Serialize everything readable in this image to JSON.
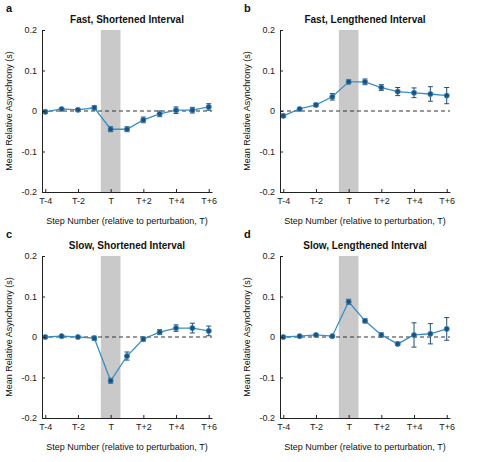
{
  "chart_data": [
    {
      "type": "line",
      "panel_label": "a",
      "title": "Fast, Shortened Interval",
      "xlabel": "Step Number (relative to perturbation, T)",
      "ylabel": "Mean Relative Asynchrony (s)",
      "x": [
        -4,
        -3,
        -2,
        -1,
        0,
        1,
        2,
        3,
        4,
        5,
        6
      ],
      "values": [
        -0.002,
        0.005,
        0.003,
        0.008,
        -0.045,
        -0.045,
        -0.022,
        -0.007,
        0.002,
        0.002,
        0.01
      ],
      "error": [
        0.004,
        0.003,
        0.003,
        0.005,
        0.006,
        0.006,
        0.007,
        0.007,
        0.008,
        0.007,
        0.008
      ],
      "color": "#3a8fc7",
      "marker": "circle",
      "xlim": [
        -4.2,
        6.2
      ],
      "xticks": [
        {
          "value": -4,
          "label": "T-4"
        },
        {
          "value": -2,
          "label": "T-2"
        },
        {
          "value": 0,
          "label": "T"
        },
        {
          "value": 2,
          "label": "T+2"
        },
        {
          "value": 4,
          "label": "T+4"
        },
        {
          "value": 6,
          "label": "T+6"
        }
      ],
      "ylim": [
        -0.2,
        0.2
      ],
      "yticks": [
        -0.2,
        -0.1,
        0,
        0.1,
        0.2
      ]
    },
    {
      "type": "line",
      "panel_label": "b",
      "title": "Fast, Lengthened Interval",
      "xlabel": "Step Number (relative to perturbation, T)",
      "ylabel": "Mean Relative Asynchrony (s)",
      "x": [
        -4,
        -3,
        -2,
        -1,
        0,
        1,
        2,
        3,
        4,
        5,
        6
      ],
      "values": [
        -0.012,
        0.005,
        0.015,
        0.035,
        0.072,
        0.072,
        0.058,
        0.048,
        0.045,
        0.042,
        0.038
      ],
      "error": [
        0.004,
        0.003,
        0.004,
        0.008,
        0.005,
        0.007,
        0.007,
        0.01,
        0.012,
        0.018,
        0.02
      ],
      "color": "#3a8fc7",
      "marker": "circle",
      "xlim": [
        -4.2,
        6.2
      ],
      "xticks": [
        {
          "value": -4,
          "label": "T-4"
        },
        {
          "value": -2,
          "label": "T-2"
        },
        {
          "value": 0,
          "label": "T"
        },
        {
          "value": 2,
          "label": "T+2"
        },
        {
          "value": 4,
          "label": "T+4"
        },
        {
          "value": 6,
          "label": "T+6"
        }
      ],
      "ylim": [
        -0.2,
        0.2
      ],
      "yticks": [
        -0.2,
        -0.1,
        0,
        0.1,
        0.2
      ]
    },
    {
      "type": "line",
      "panel_label": "c",
      "title": "Slow, Shortened Interval",
      "xlabel": "Step Number (relative to perturbation, T)",
      "ylabel": "Mean Relative Asynchrony (s)",
      "x": [
        -4,
        -3,
        -2,
        -1,
        0,
        1,
        2,
        3,
        4,
        5,
        6
      ],
      "values": [
        0,
        0.002,
        0,
        -0.003,
        -0.108,
        -0.047,
        -0.005,
        0.012,
        0.022,
        0.022,
        0.015
      ],
      "error": [
        0.003,
        0.002,
        0.002,
        0.005,
        0.006,
        0.01,
        0.005,
        0.006,
        0.008,
        0.012,
        0.012
      ],
      "color": "#3a8fc7",
      "marker": "circle",
      "xlim": [
        -4.2,
        6.2
      ],
      "xticks": [
        {
          "value": -4,
          "label": "T-4"
        },
        {
          "value": -2,
          "label": "T-2"
        },
        {
          "value": 0,
          "label": "T"
        },
        {
          "value": 2,
          "label": "T+2"
        },
        {
          "value": 4,
          "label": "T+4"
        },
        {
          "value": 6,
          "label": "T+6"
        }
      ],
      "ylim": [
        -0.2,
        0.2
      ],
      "yticks": [
        -0.2,
        -0.1,
        0,
        0.1,
        0.2
      ]
    },
    {
      "type": "line",
      "panel_label": "d",
      "title": "Slow, Lengthened Interval",
      "xlabel": "Step Number (relative to perturbation, T)",
      "ylabel": "Mean Relative Asynchrony (s)",
      "x": [
        -4,
        -3,
        -2,
        -1,
        0,
        1,
        2,
        3,
        4,
        5,
        6
      ],
      "values": [
        0,
        0.002,
        0.005,
        0.002,
        0.087,
        0.04,
        0.005,
        -0.017,
        0.005,
        0.008,
        0.02
      ],
      "error": [
        0.002,
        0.002,
        0.002,
        0.002,
        0.006,
        0.005,
        0.005,
        0.004,
        0.03,
        0.025,
        0.028
      ],
      "color": "#3a8fc7",
      "marker": "circle",
      "xlim": [
        -4.2,
        6.2
      ],
      "xticks": [
        {
          "value": -4,
          "label": "T-4"
        },
        {
          "value": -2,
          "label": "T-2"
        },
        {
          "value": 0,
          "label": "T"
        },
        {
          "value": 2,
          "label": "T+2"
        },
        {
          "value": 4,
          "label": "T+4"
        },
        {
          "value": 6,
          "label": "T+6"
        }
      ],
      "ylim": [
        -0.2,
        0.2
      ],
      "yticks": [
        -0.2,
        -0.1,
        0,
        0.1,
        0.2
      ]
    }
  ]
}
